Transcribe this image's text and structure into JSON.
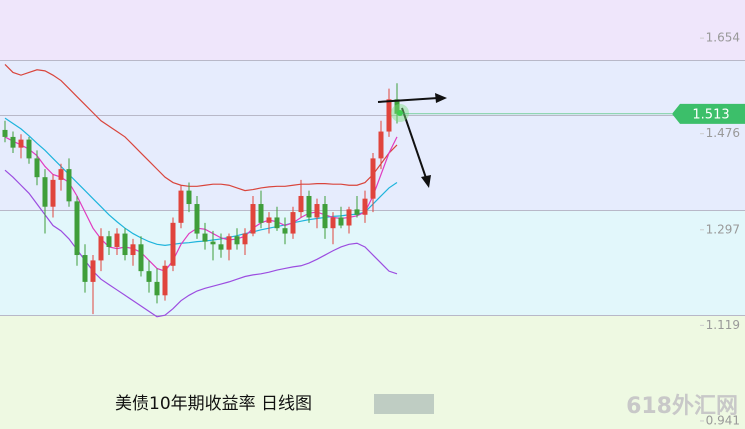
{
  "chart_data": {
    "type": "candlestick",
    "caption": "美债10年期收益率  日线图",
    "watermark": "618外汇网",
    "ylim": [
      0.926,
      1.725
    ],
    "yticks": [
      1.654,
      1.476,
      1.297,
      1.119,
      0.941
    ],
    "last_price": 1.513,
    "up_color": "#e0443c",
    "down_color": "#3f9e3a",
    "open": [
      1.483,
      1.47,
      1.45,
      1.465,
      1.43,
      1.395,
      1.34,
      1.39,
      1.41,
      1.35,
      1.25,
      1.2,
      1.24,
      1.285,
      1.265,
      1.29,
      1.25,
      1.27,
      1.22,
      1.2,
      1.175,
      1.23,
      1.31,
      1.37,
      1.345,
      1.29,
      1.275,
      1.27,
      1.26,
      1.285,
      1.27,
      1.29,
      1.345,
      1.31,
      1.32,
      1.3,
      1.29,
      1.33,
      1.36,
      1.32,
      1.345,
      1.3,
      1.32,
      1.305,
      1.335,
      1.325,
      1.355,
      1.43,
      1.48,
      1.54
    ],
    "high": [
      1.5,
      1.48,
      1.475,
      1.47,
      1.445,
      1.41,
      1.4,
      1.42,
      1.43,
      1.36,
      1.27,
      1.25,
      1.3,
      1.295,
      1.3,
      1.3,
      1.28,
      1.285,
      1.24,
      1.225,
      1.24,
      1.32,
      1.38,
      1.385,
      1.36,
      1.31,
      1.295,
      1.29,
      1.29,
      1.3,
      1.3,
      1.36,
      1.37,
      1.33,
      1.34,
      1.32,
      1.34,
      1.39,
      1.37,
      1.355,
      1.36,
      1.33,
      1.34,
      1.34,
      1.36,
      1.37,
      1.44,
      1.5,
      1.56,
      1.57
    ],
    "low": [
      1.46,
      1.44,
      1.43,
      1.42,
      1.38,
      1.29,
      1.32,
      1.37,
      1.34,
      1.23,
      1.18,
      1.14,
      1.22,
      1.25,
      1.25,
      1.24,
      1.23,
      1.21,
      1.18,
      1.16,
      1.165,
      1.22,
      1.3,
      1.33,
      1.28,
      1.26,
      1.24,
      1.245,
      1.24,
      1.26,
      1.25,
      1.285,
      1.3,
      1.29,
      1.295,
      1.27,
      1.28,
      1.32,
      1.31,
      1.3,
      1.28,
      1.27,
      1.3,
      1.29,
      1.32,
      1.31,
      1.33,
      1.41,
      1.47,
      1.495
    ],
    "close": [
      1.47,
      1.45,
      1.465,
      1.43,
      1.395,
      1.34,
      1.39,
      1.41,
      1.35,
      1.25,
      1.2,
      1.24,
      1.285,
      1.265,
      1.29,
      1.25,
      1.27,
      1.22,
      1.2,
      1.175,
      1.23,
      1.31,
      1.37,
      1.345,
      1.29,
      1.275,
      1.27,
      1.26,
      1.285,
      1.27,
      1.29,
      1.345,
      1.31,
      1.32,
      1.3,
      1.29,
      1.33,
      1.36,
      1.32,
      1.345,
      1.3,
      1.32,
      1.305,
      1.335,
      1.325,
      1.355,
      1.43,
      1.48,
      1.54,
      1.513
    ],
    "series": [
      {
        "color": "#d9453c",
        "values": [
          1.605,
          1.59,
          1.585,
          1.59,
          1.595,
          1.593,
          1.585,
          1.575,
          1.56,
          1.545,
          1.53,
          1.515,
          1.5,
          1.49,
          1.48,
          1.47,
          1.455,
          1.44,
          1.425,
          1.41,
          1.395,
          1.385,
          1.38,
          1.378,
          1.378,
          1.38,
          1.382,
          1.382,
          1.38,
          1.375,
          1.37,
          1.372,
          1.375,
          1.377,
          1.378,
          1.378,
          1.38,
          1.382,
          1.382,
          1.383,
          1.383,
          1.382,
          1.382,
          1.38,
          1.38,
          1.385,
          1.4,
          1.42,
          1.44,
          1.455
        ]
      },
      {
        "color": "#9c4de0",
        "values": [
          1.408,
          1.395,
          1.38,
          1.365,
          1.345,
          1.325,
          1.305,
          1.295,
          1.28,
          1.26,
          1.24,
          1.22,
          1.205,
          1.195,
          1.185,
          1.175,
          1.165,
          1.155,
          1.145,
          1.135,
          1.138,
          1.15,
          1.165,
          1.175,
          1.183,
          1.188,
          1.192,
          1.196,
          1.2,
          1.205,
          1.21,
          1.213,
          1.215,
          1.218,
          1.222,
          1.225,
          1.228,
          1.23,
          1.235,
          1.242,
          1.25,
          1.258,
          1.265,
          1.27,
          1.272,
          1.265,
          1.25,
          1.235,
          1.22,
          1.215
        ]
      },
      {
        "color": "#1eb4dc",
        "values": [
          1.505,
          1.495,
          1.485,
          1.472,
          1.458,
          1.445,
          1.43,
          1.415,
          1.4,
          1.385,
          1.37,
          1.355,
          1.34,
          1.325,
          1.312,
          1.3,
          1.29,
          1.282,
          1.275,
          1.27,
          1.268,
          1.27,
          1.272,
          1.273,
          1.275,
          1.276,
          1.278,
          1.28,
          1.283,
          1.286,
          1.29,
          1.293,
          1.297,
          1.3,
          1.303,
          1.306,
          1.31,
          1.313,
          1.316,
          1.318,
          1.32,
          1.322,
          1.323,
          1.325,
          1.326,
          1.33,
          1.345,
          1.36,
          1.375,
          1.385
        ]
      },
      {
        "color": "#e03cc0",
        "values": [
          1.47,
          1.462,
          1.455,
          1.447,
          1.435,
          1.415,
          1.4,
          1.395,
          1.385,
          1.36,
          1.33,
          1.3,
          1.28,
          1.265,
          1.262,
          1.265,
          1.262,
          1.255,
          1.24,
          1.225,
          1.22,
          1.24,
          1.27,
          1.29,
          1.3,
          1.298,
          1.29,
          1.282,
          1.278,
          1.28,
          1.285,
          1.3,
          1.31,
          1.315,
          1.312,
          1.305,
          1.31,
          1.32,
          1.328,
          1.33,
          1.325,
          1.32,
          1.318,
          1.32,
          1.323,
          1.33,
          1.36,
          1.4,
          1.44,
          1.47
        ]
      }
    ]
  }
}
